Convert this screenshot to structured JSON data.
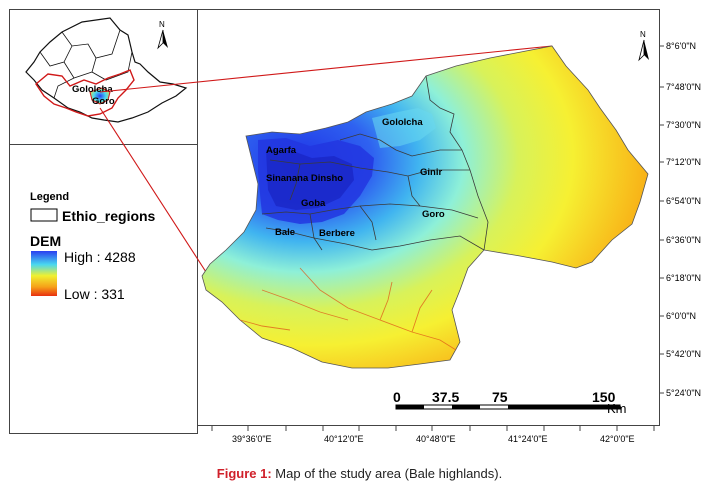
{
  "inset": {
    "north_label": "N",
    "labels": [
      "Gololcha",
      "Goro"
    ]
  },
  "main_map": {
    "north_label": "N",
    "districts": [
      "Gololcha",
      "Agarfa",
      "Sinanana Dinsho",
      "Ginir",
      "Goba",
      "Goro",
      "Bale",
      "Berbere"
    ],
    "lat_labels": [
      "8°6'0\"N",
      "7°48'0\"N",
      "7°30'0\"N",
      "7°12'0\"N",
      "6°54'0\"N",
      "6°36'0\"N",
      "6°18'0\"N",
      "6°0'0\"N",
      "5°42'0\"N",
      "5°24'0\"N"
    ],
    "lon_labels": [
      "39°36'0\"E",
      "40°12'0\"E",
      "40°48'0\"E",
      "41°24'0\"E",
      "42°0'0\"E"
    ],
    "scale": {
      "ticks": [
        "0",
        "37.5",
        "75",
        "150"
      ],
      "unit": "Km"
    }
  },
  "legend": {
    "title": "Legend",
    "regions_label": "Ethio_regions",
    "dem_title": "DEM",
    "high_label": "High : 4288",
    "low_label": "Low : 331",
    "dem_min": 331,
    "dem_max": 4288,
    "colors": {
      "high": "#2a3ff0",
      "mid_high": "#49d8f0",
      "mid": "#f0f030",
      "low": "#e83010",
      "boundary": "#d01818"
    }
  },
  "caption": {
    "prefix": "Figure 1:",
    "text": " Map of the study area (Bale highlands)."
  }
}
